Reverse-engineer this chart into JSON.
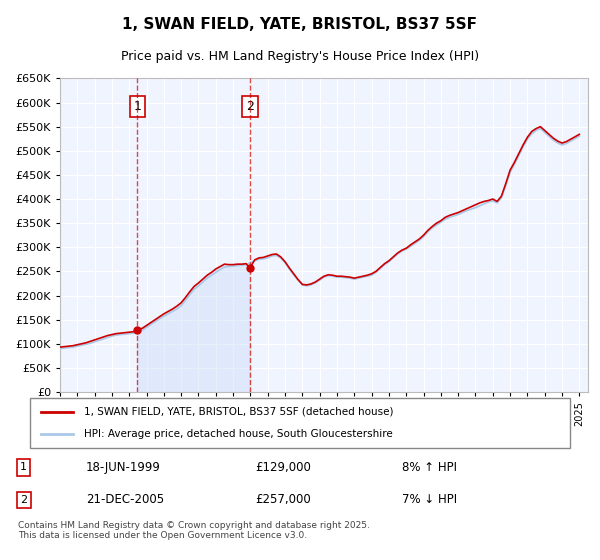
{
  "title": "1, SWAN FIELD, YATE, BRISTOL, BS37 5SF",
  "subtitle": "Price paid vs. HM Land Registry's House Price Index (HPI)",
  "ylabel_ticks": [
    "£0",
    "£50K",
    "£100K",
    "£150K",
    "£200K",
    "£250K",
    "£300K",
    "£350K",
    "£400K",
    "£450K",
    "£500K",
    "£550K",
    "£600K",
    "£650K"
  ],
  "ylim": [
    0,
    650000
  ],
  "ytick_values": [
    0,
    50000,
    100000,
    150000,
    200000,
    250000,
    300000,
    350000,
    400000,
    450000,
    500000,
    550000,
    600000,
    650000
  ],
  "xlim_start": 1995.0,
  "xlim_end": 2025.5,
  "background_color": "#ffffff",
  "chart_bg_color": "#f0f4ff",
  "grid_color": "#ffffff",
  "hpi_line_color": "#aac8e8",
  "price_line_color": "#cc0000",
  "sale1_x": 1999.46,
  "sale1_y": 129000,
  "sale1_label": "1",
  "sale1_date": "18-JUN-1999",
  "sale1_price": "£129,000",
  "sale1_pct": "8% ↑ HPI",
  "sale2_x": 2005.97,
  "sale2_y": 257000,
  "sale2_label": "2",
  "sale2_date": "21-DEC-2005",
  "sale2_price": "£257,000",
  "sale2_pct": "7% ↓ HPI",
  "legend_label1": "1, SWAN FIELD, YATE, BRISTOL, BS37 5SF (detached house)",
  "legend_label2": "HPI: Average price, detached house, South Gloucestershire",
  "footer": "Contains HM Land Registry data © Crown copyright and database right 2025.\nThis data is licensed under the Open Government Licence v3.0.",
  "hpi_data_x": [
    1995.0,
    1995.25,
    1995.5,
    1995.75,
    1996.0,
    1996.25,
    1996.5,
    1996.75,
    1997.0,
    1997.25,
    1997.5,
    1997.75,
    1998.0,
    1998.25,
    1998.5,
    1998.75,
    1999.0,
    1999.25,
    1999.5,
    1999.75,
    2000.0,
    2000.25,
    2000.5,
    2000.75,
    2001.0,
    2001.25,
    2001.5,
    2001.75,
    2002.0,
    2002.25,
    2002.5,
    2002.75,
    2003.0,
    2003.25,
    2003.5,
    2003.75,
    2004.0,
    2004.25,
    2004.5,
    2004.75,
    2005.0,
    2005.25,
    2005.5,
    2005.75,
    2006.0,
    2006.25,
    2006.5,
    2006.75,
    2007.0,
    2007.25,
    2007.5,
    2007.75,
    2008.0,
    2008.25,
    2008.5,
    2008.75,
    2009.0,
    2009.25,
    2009.5,
    2009.75,
    2010.0,
    2010.25,
    2010.5,
    2010.75,
    2011.0,
    2011.25,
    2011.5,
    2011.75,
    2012.0,
    2012.25,
    2012.5,
    2012.75,
    2013.0,
    2013.25,
    2013.5,
    2013.75,
    2014.0,
    2014.25,
    2014.5,
    2014.75,
    2015.0,
    2015.25,
    2015.5,
    2015.75,
    2016.0,
    2016.25,
    2016.5,
    2016.75,
    2017.0,
    2017.25,
    2017.5,
    2017.75,
    2018.0,
    2018.25,
    2018.5,
    2018.75,
    2019.0,
    2019.25,
    2019.5,
    2019.75,
    2020.0,
    2020.25,
    2020.5,
    2020.75,
    2021.0,
    2021.25,
    2021.5,
    2021.75,
    2022.0,
    2022.25,
    2022.5,
    2022.75,
    2023.0,
    2023.25,
    2023.5,
    2023.75,
    2024.0,
    2024.25,
    2024.5,
    2024.75,
    2025.0
  ],
  "hpi_data_y": [
    90000,
    91000,
    92000,
    93000,
    95000,
    97000,
    99000,
    101000,
    104000,
    107000,
    110000,
    113000,
    116000,
    118000,
    119000,
    120000,
    121000,
    122000,
    124000,
    128000,
    134000,
    140000,
    146000,
    152000,
    157000,
    162000,
    167000,
    172000,
    179000,
    190000,
    202000,
    213000,
    220000,
    228000,
    236000,
    242000,
    248000,
    254000,
    259000,
    260000,
    261000,
    262000,
    263000,
    264000,
    268000,
    272000,
    275000,
    276000,
    278000,
    282000,
    283000,
    278000,
    268000,
    255000,
    243000,
    232000,
    222000,
    220000,
    222000,
    226000,
    232000,
    238000,
    241000,
    240000,
    238000,
    238000,
    237000,
    236000,
    234000,
    236000,
    238000,
    240000,
    242000,
    248000,
    256000,
    264000,
    270000,
    278000,
    286000,
    292000,
    296000,
    302000,
    308000,
    314000,
    322000,
    332000,
    340000,
    346000,
    352000,
    358000,
    362000,
    365000,
    368000,
    372000,
    376000,
    379000,
    382000,
    386000,
    390000,
    394000,
    396000,
    392000,
    402000,
    428000,
    455000,
    472000,
    490000,
    508000,
    524000,
    535000,
    542000,
    546000,
    538000,
    530000,
    522000,
    516000,
    512000,
    515000,
    520000,
    525000,
    530000
  ],
  "price_data_x": [
    1995.0,
    1995.25,
    1995.5,
    1995.75,
    1996.0,
    1996.25,
    1996.5,
    1996.75,
    1997.0,
    1997.25,
    1997.5,
    1997.75,
    1998.0,
    1998.25,
    1998.5,
    1998.75,
    1999.0,
    1999.25,
    1999.46,
    1999.75,
    2000.0,
    2000.25,
    2000.5,
    2000.75,
    2001.0,
    2001.25,
    2001.5,
    2001.75,
    2002.0,
    2002.25,
    2002.5,
    2002.75,
    2003.0,
    2003.25,
    2003.5,
    2003.75,
    2004.0,
    2004.25,
    2004.5,
    2004.75,
    2005.0,
    2005.25,
    2005.5,
    2005.75,
    2005.97,
    2006.25,
    2006.5,
    2006.75,
    2007.0,
    2007.25,
    2007.5,
    2007.75,
    2008.0,
    2008.25,
    2008.5,
    2008.75,
    2009.0,
    2009.25,
    2009.5,
    2009.75,
    2010.0,
    2010.25,
    2010.5,
    2010.75,
    2011.0,
    2011.25,
    2011.5,
    2011.75,
    2012.0,
    2012.25,
    2012.5,
    2012.75,
    2013.0,
    2013.25,
    2013.5,
    2013.75,
    2014.0,
    2014.25,
    2014.5,
    2014.75,
    2015.0,
    2015.25,
    2015.5,
    2015.75,
    2016.0,
    2016.25,
    2016.5,
    2016.75,
    2017.0,
    2017.25,
    2017.5,
    2017.75,
    2018.0,
    2018.25,
    2018.5,
    2018.75,
    2019.0,
    2019.25,
    2019.5,
    2019.75,
    2020.0,
    2020.25,
    2020.5,
    2020.75,
    2021.0,
    2021.25,
    2021.5,
    2021.75,
    2022.0,
    2022.25,
    2022.5,
    2022.75,
    2023.0,
    2023.25,
    2023.5,
    2023.75,
    2024.0,
    2024.25,
    2024.5,
    2024.75,
    2025.0
  ],
  "price_data_y": [
    93000,
    94000,
    95000,
    96000,
    98000,
    100000,
    102000,
    105000,
    108000,
    111000,
    114000,
    117000,
    119000,
    121000,
    122000,
    123000,
    124000,
    125000,
    129000,
    132000,
    138000,
    144000,
    150000,
    156000,
    162000,
    167000,
    172000,
    178000,
    185000,
    196000,
    208000,
    219000,
    226000,
    234000,
    242000,
    248000,
    255000,
    260000,
    265000,
    264000,
    264000,
    265000,
    265000,
    266000,
    257000,
    274000,
    278000,
    279000,
    282000,
    285000,
    286000,
    280000,
    270000,
    257000,
    245000,
    233000,
    223000,
    222000,
    224000,
    228000,
    234000,
    240000,
    243000,
    242000,
    240000,
    240000,
    239000,
    238000,
    236000,
    238000,
    240000,
    242000,
    245000,
    250000,
    258000,
    266000,
    272000,
    280000,
    288000,
    294000,
    298000,
    305000,
    311000,
    317000,
    325000,
    335000,
    343000,
    350000,
    355000,
    362000,
    366000,
    369000,
    372000,
    376000,
    380000,
    384000,
    388000,
    392000,
    395000,
    397000,
    400000,
    395000,
    406000,
    432000,
    460000,
    476000,
    494000,
    512000,
    528000,
    540000,
    546000,
    550000,
    542000,
    534000,
    526000,
    520000,
    516000,
    519000,
    524000,
    529000,
    534000
  ]
}
